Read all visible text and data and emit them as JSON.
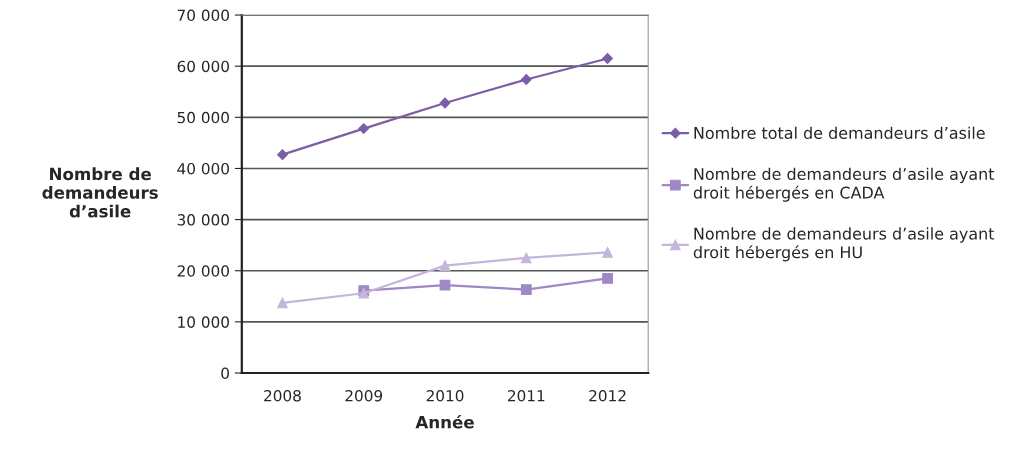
{
  "chart_data": {
    "type": "line",
    "xlabel": "Année",
    "ylabel": "Nombre de\ndemandeurs\nd’asile",
    "categories": [
      "2008",
      "2009",
      "2010",
      "2011",
      "2012"
    ],
    "series": [
      {
        "name": "Nombre total de demandeurs d’asile",
        "color": "#7b5ea7",
        "marker": "diamond",
        "values": [
          42700,
          47800,
          52800,
          57400,
          61500
        ]
      },
      {
        "name": "Nombre de demandeurs d’asile ayant\ndroit hébergés en CADA",
        "color": "#9f88c5",
        "marker": "square",
        "values": [
          null,
          16100,
          17200,
          16300,
          18500
        ]
      },
      {
        "name": "Nombre de demandeurs d’asile ayant\ndroit hébergés en HU",
        "color": "#c4b5dc",
        "marker": "triangle",
        "values": [
          13700,
          15600,
          21000,
          22500,
          23600
        ]
      }
    ],
    "ylim": [
      0,
      70000
    ],
    "yticks": [
      {
        "value": 0,
        "label": "0"
      },
      {
        "value": 10000,
        "label": "10 000"
      },
      {
        "value": 20000,
        "label": "20 000"
      },
      {
        "value": 30000,
        "label": "30 000"
      },
      {
        "value": 40000,
        "label": "40 000"
      },
      {
        "value": 50000,
        "label": "50 000"
      },
      {
        "value": 60000,
        "label": "60 000"
      },
      {
        "value": 70000,
        "label": "70 000"
      }
    ],
    "grid": "y",
    "legend": "right",
    "line_style": "solid"
  }
}
